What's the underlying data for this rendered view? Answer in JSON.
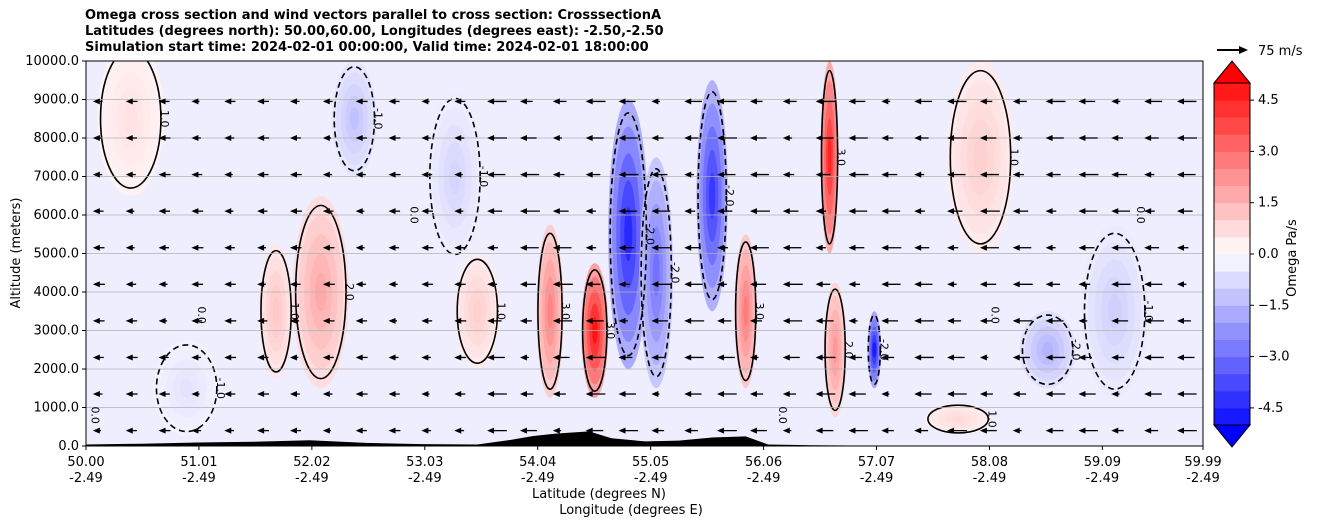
{
  "chart_data": {
    "type": "heatmap",
    "title_lines": [
      "Omega cross section and wind vectors parallel to cross section: CrosssectionA",
      "Latitudes (degrees north): 50.00,60.00, Longitudes (degrees east): -2.50,-2.50",
      "Simulation start time: 2024-02-01 00:00:00, Valid time: 2024-02-01 18:00:00"
    ],
    "ylabel": "Altitude (meters)",
    "xlabel_lines": [
      "Latitude (degrees N)",
      "Longitude (degrees E)"
    ],
    "ylim": [
      0,
      10000
    ],
    "xlim": [
      50.0,
      59.99
    ],
    "y_ticks": [
      "0.0",
      "1000.0",
      "2000.0",
      "3000.0",
      "4000.0",
      "5000.0",
      "6000.0",
      "7000.0",
      "8000.0",
      "9000.0",
      "10000.0"
    ],
    "x_ticks": [
      {
        "lat": "50.00",
        "lon": "-2.49"
      },
      {
        "lat": "51.01",
        "lon": "-2.49"
      },
      {
        "lat": "52.02",
        "lon": "-2.49"
      },
      {
        "lat": "53.03",
        "lon": "-2.49"
      },
      {
        "lat": "54.04",
        "lon": "-2.49"
      },
      {
        "lat": "55.05",
        "lon": "-2.49"
      },
      {
        "lat": "56.06",
        "lon": "-2.49"
      },
      {
        "lat": "57.07",
        "lon": "-2.49"
      },
      {
        "lat": "58.08",
        "lon": "-2.49"
      },
      {
        "lat": "59.09",
        "lon": "-2.49"
      },
      {
        "lat": "59.99",
        "lon": "-2.49"
      }
    ],
    "grid": "horizontal",
    "colorbar": {
      "label": "Omega Pa/s",
      "range": [
        -5,
        5
      ],
      "extend": "both",
      "ticks": [
        "-4.5",
        "−3.0",
        "−1.5",
        "0.0",
        "1.5",
        "3.0",
        "4.5"
      ],
      "tick_values": [
        -4.5,
        -3.0,
        -1.5,
        0.0,
        1.5,
        3.0,
        4.5
      ],
      "neg_color": "#0000ff",
      "pos_color": "#ff0000"
    },
    "quiver_key": {
      "label": "75 m/s",
      "value": 75
    },
    "contour_labels": [
      "0.0",
      "1.0",
      "-1.0",
      "2.0",
      "-2.0",
      "3.0"
    ],
    "omega_features": [
      {
        "lat": 54.55,
        "z": 3000,
        "value": 5.0,
        "width": 0.12,
        "height": 3500
      },
      {
        "lat": 54.15,
        "z": 3500,
        "value": 2.6,
        "width": 0.12,
        "height": 4500
      },
      {
        "lat": 54.85,
        "z": 5500,
        "value": -4.5,
        "width": 0.18,
        "height": 7000
      },
      {
        "lat": 55.1,
        "z": 4500,
        "value": -3.0,
        "width": 0.15,
        "height": 6000
      },
      {
        "lat": 55.6,
        "z": 6500,
        "value": -4.2,
        "width": 0.14,
        "height": 6000
      },
      {
        "lat": 55.9,
        "z": 3500,
        "value": 2.8,
        "width": 0.1,
        "height": 4000
      },
      {
        "lat": 56.65,
        "z": 7500,
        "value": 4.6,
        "width": 0.08,
        "height": 5000
      },
      {
        "lat": 56.7,
        "z": 2500,
        "value": 2.2,
        "width": 0.1,
        "height": 3500
      },
      {
        "lat": 57.05,
        "z": 2500,
        "value": -4.8,
        "width": 0.06,
        "height": 2000
      },
      {
        "lat": 52.1,
        "z": 4000,
        "value": 1.8,
        "width": 0.25,
        "height": 5000
      },
      {
        "lat": 51.7,
        "z": 3500,
        "value": 1.2,
        "width": 0.15,
        "height": 3500
      },
      {
        "lat": 53.5,
        "z": 3500,
        "value": 1.0,
        "width": 0.2,
        "height": 3000
      },
      {
        "lat": 52.4,
        "z": 8500,
        "value": -1.3,
        "width": 0.2,
        "height": 3000
      },
      {
        "lat": 53.3,
        "z": 7000,
        "value": -0.9,
        "width": 0.25,
        "height": 4500
      },
      {
        "lat": 58.6,
        "z": 2500,
        "value": -1.6,
        "width": 0.25,
        "height": 2000
      },
      {
        "lat": 59.2,
        "z": 3500,
        "value": -1.0,
        "width": 0.3,
        "height": 4500
      },
      {
        "lat": 58.0,
        "z": 7500,
        "value": 1.0,
        "width": 0.3,
        "height": 5000
      },
      {
        "lat": 50.4,
        "z": 8500,
        "value": 0.6,
        "width": 0.3,
        "height": 4000
      },
      {
        "lat": 50.9,
        "z": 1500,
        "value": -0.6,
        "width": 0.3,
        "height": 2500
      },
      {
        "lat": 57.8,
        "z": 700,
        "value": 0.8,
        "width": 0.3,
        "height": 800
      }
    ],
    "terrain": [
      [
        50.0,
        40
      ],
      [
        50.5,
        60
      ],
      [
        51.0,
        90
      ],
      [
        51.5,
        110
      ],
      [
        52.0,
        150
      ],
      [
        52.5,
        80
      ],
      [
        53.0,
        50
      ],
      [
        53.5,
        40
      ],
      [
        53.8,
        160
      ],
      [
        54.0,
        260
      ],
      [
        54.2,
        320
      ],
      [
        54.5,
        380
      ],
      [
        54.7,
        200
      ],
      [
        55.0,
        120
      ],
      [
        55.3,
        140
      ],
      [
        55.6,
        220
      ],
      [
        55.9,
        250
      ],
      [
        56.1,
        40
      ],
      [
        56.5,
        20
      ],
      [
        57.0,
        10
      ],
      [
        58.0,
        0
      ],
      [
        59.0,
        0
      ],
      [
        59.99,
        0
      ]
    ]
  }
}
